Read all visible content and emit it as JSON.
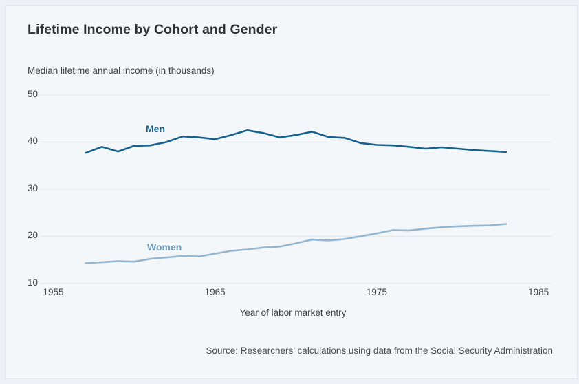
{
  "page": {
    "title": "Lifetime Income by Cohort and Gender",
    "subtitle": "Median lifetime annual income (in thousands)",
    "x_axis_label": "Year of labor market entry",
    "source": "Source: Researchers’ calculations using data from the Social Security Administration"
  },
  "chart_data": {
    "type": "line",
    "title": "Lifetime Income by Cohort and Gender",
    "ylabel": "Median lifetime annual income (in thousands)",
    "xlabel": "Year of labor market entry",
    "xlim": [
      1955,
      1985
    ],
    "ylim": [
      10,
      50
    ],
    "x_ticks": [
      1955,
      1965,
      1975,
      1985
    ],
    "y_ticks": [
      50,
      40,
      30,
      20,
      10
    ],
    "grid": "horizontal gridlines only",
    "legend": "inline series labels on chart",
    "x": [
      1957,
      1958,
      1959,
      1960,
      1961,
      1962,
      1963,
      1964,
      1965,
      1966,
      1967,
      1968,
      1969,
      1970,
      1971,
      1972,
      1973,
      1974,
      1975,
      1976,
      1977,
      1978,
      1979,
      1980,
      1981,
      1982,
      1983
    ],
    "series": [
      {
        "name": "Men",
        "color": "#17618e",
        "label_color": "#1a628f",
        "values": [
          37.7,
          39.0,
          38.0,
          39.2,
          39.3,
          40.0,
          41.2,
          41.0,
          40.6,
          41.5,
          42.5,
          41.9,
          41.0,
          41.5,
          42.2,
          41.1,
          40.9,
          39.8,
          39.4,
          39.3,
          39.0,
          38.6,
          38.9,
          38.6,
          38.3,
          38.1,
          37.9
        ]
      },
      {
        "name": "Women",
        "color": "#94b6d0",
        "label_color": "#6d9dc0",
        "values": [
          14.3,
          14.5,
          14.7,
          14.6,
          15.2,
          15.5,
          15.8,
          15.7,
          16.3,
          16.9,
          17.2,
          17.6,
          17.8,
          18.5,
          19.3,
          19.1,
          19.4,
          20.0,
          20.6,
          21.3,
          21.2,
          21.6,
          21.9,
          22.1,
          22.2,
          22.3,
          22.6
        ]
      }
    ],
    "colors": {
      "card_background": "#f3f7fa",
      "page_background": "#edf0f4",
      "gridline": "#e0e5e9",
      "title_text": "#2e3338",
      "body_text": "#41464b"
    }
  }
}
